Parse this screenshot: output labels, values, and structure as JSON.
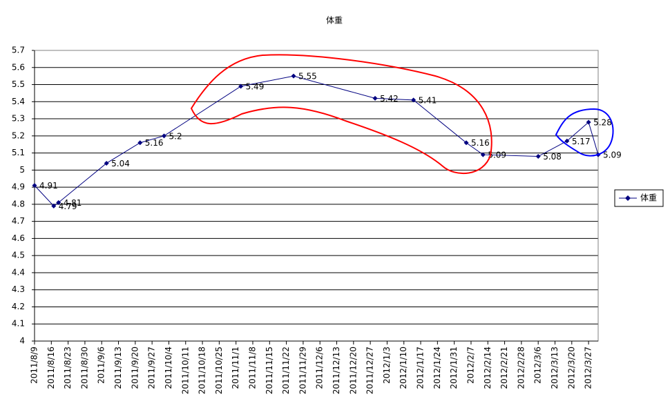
{
  "chart_data": {
    "type": "line",
    "title": "体重",
    "x": [
      "2011/8/9",
      "2011/8/17",
      "2011/8/19",
      "2011/9/8",
      "2011/9/22",
      "2011/10/2",
      "2011/11/3",
      "2011/11/25",
      "2011/12/29",
      "2012/1/14",
      "2012/2/5",
      "2012/2/12",
      "2012/3/6",
      "2012/3/18",
      "2012/3/27",
      "2012/3/31"
    ],
    "series": [
      {
        "name": "体重",
        "color": "#000080",
        "values": [
          4.91,
          4.79,
          4.81,
          5.04,
          5.16,
          5.2,
          5.49,
          5.55,
          5.42,
          5.41,
          5.16,
          5.09,
          5.08,
          5.17,
          5.28,
          5.09
        ]
      }
    ],
    "xlim": [
      "2011/8/9",
      "2012/3/31"
    ],
    "xticks": [
      "2011/8/9",
      "2011/8/16",
      "2011/8/23",
      "2011/8/30",
      "2011/9/6",
      "2011/9/13",
      "2011/9/20",
      "2011/9/27",
      "2011/10/4",
      "2011/10/11",
      "2011/10/18",
      "2011/10/25",
      "2011/11/1",
      "2011/11/8",
      "2011/11/15",
      "2011/11/22",
      "2011/11/29",
      "2011/12/6",
      "2011/12/13",
      "2011/12/20",
      "2011/12/27",
      "2012/1/3",
      "2012/1/10",
      "2012/1/17",
      "2012/1/24",
      "2012/1/31",
      "2012/2/7",
      "2012/2/14",
      "2012/2/21",
      "2012/2/28",
      "2012/3/6",
      "2012/3/13",
      "2012/3/20",
      "2012/3/27"
    ],
    "ylim": [
      4,
      5.7
    ],
    "yticks": [
      4,
      4.1,
      4.2,
      4.3,
      4.4,
      4.5,
      4.6,
      4.7,
      4.8,
      4.9,
      5,
      5.1,
      5.2,
      5.3,
      5.4,
      5.5,
      5.6,
      5.7
    ],
    "grid": true,
    "legend": "right"
  }
}
